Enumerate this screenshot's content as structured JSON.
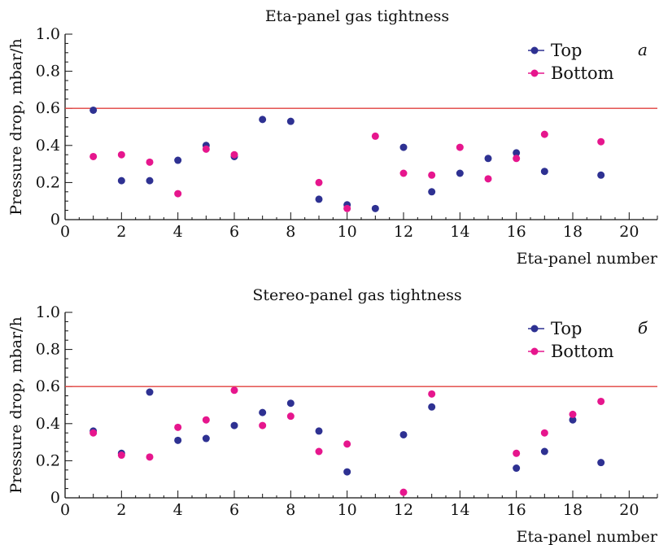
{
  "chart_data": [
    {
      "type": "scatter",
      "title": "Eta-panel gas tightness",
      "xlabel": "Eta-panel number",
      "ylabel": "Pressure drop, mbar/h",
      "panel_label": "a",
      "xlim": [
        0,
        21
      ],
      "ylim": [
        0,
        1.0
      ],
      "x_ticks": [
        0,
        2,
        4,
        6,
        8,
        10,
        12,
        14,
        16,
        18,
        20
      ],
      "y_ticks": [
        0,
        0.2,
        0.4,
        0.6,
        0.8,
        1.0
      ],
      "y_tick_labels": [
        "0",
        "0.2",
        "0.4",
        "0.6",
        "0.8",
        "1.0"
      ],
      "reference_line": {
        "y": 0.6,
        "color": "#e0413e"
      },
      "legend_position": "top-right",
      "series": [
        {
          "name": "Top",
          "color": "#2e3192",
          "points": [
            [
              1,
              0.59
            ],
            [
              2,
              0.21
            ],
            [
              3,
              0.21
            ],
            [
              4,
              0.32
            ],
            [
              5,
              0.4
            ],
            [
              6,
              0.34
            ],
            [
              7,
              0.54
            ],
            [
              8,
              0.53
            ],
            [
              9,
              0.11
            ],
            [
              10,
              0.08
            ],
            [
              11,
              0.06
            ],
            [
              12,
              0.39
            ],
            [
              13,
              0.15
            ],
            [
              14,
              0.25
            ],
            [
              15,
              0.33
            ],
            [
              16,
              0.36
            ],
            [
              17,
              0.26
            ],
            [
              19,
              0.24
            ]
          ]
        },
        {
          "name": "Bottom",
          "color": "#e6168d",
          "points": [
            [
              1,
              0.34
            ],
            [
              2,
              0.35
            ],
            [
              3,
              0.31
            ],
            [
              4,
              0.14
            ],
            [
              5,
              0.38
            ],
            [
              6,
              0.35
            ],
            [
              9,
              0.2
            ],
            [
              10,
              0.06
            ],
            [
              11,
              0.45
            ],
            [
              12,
              0.25
            ],
            [
              13,
              0.24
            ],
            [
              14,
              0.39
            ],
            [
              15,
              0.22
            ],
            [
              16,
              0.33
            ],
            [
              17,
              0.46
            ],
            [
              19,
              0.42
            ]
          ]
        }
      ]
    },
    {
      "type": "scatter",
      "title": "Stereo-panel gas tightness",
      "xlabel": "Eta-panel number",
      "ylabel": "Pressure drop, mbar/h",
      "panel_label": "б",
      "xlim": [
        0,
        21
      ],
      "ylim": [
        0,
        1.0
      ],
      "x_ticks": [
        0,
        2,
        4,
        6,
        8,
        10,
        12,
        14,
        16,
        18,
        20
      ],
      "y_ticks": [
        0,
        0.2,
        0.4,
        0.6,
        0.8,
        1.0
      ],
      "y_tick_labels": [
        "0",
        "0.2",
        "0.4",
        "0.6",
        "0.8",
        "1.0"
      ],
      "reference_line": {
        "y": 0.6,
        "color": "#e0413e"
      },
      "legend_position": "top-right",
      "series": [
        {
          "name": "Top",
          "color": "#2e3192",
          "points": [
            [
              1,
              0.36
            ],
            [
              2,
              0.24
            ],
            [
              3,
              0.57
            ],
            [
              4,
              0.31
            ],
            [
              5,
              0.32
            ],
            [
              6,
              0.39
            ],
            [
              7,
              0.46
            ],
            [
              8,
              0.51
            ],
            [
              9,
              0.36
            ],
            [
              10,
              0.14
            ],
            [
              12,
              0.34
            ],
            [
              13,
              0.49
            ],
            [
              16,
              0.16
            ],
            [
              17,
              0.25
            ],
            [
              18,
              0.42
            ],
            [
              19,
              0.19
            ]
          ]
        },
        {
          "name": "Bottom",
          "color": "#e6168d",
          "points": [
            [
              1,
              0.35
            ],
            [
              2,
              0.23
            ],
            [
              3,
              0.22
            ],
            [
              4,
              0.38
            ],
            [
              5,
              0.42
            ],
            [
              6,
              0.58
            ],
            [
              7,
              0.39
            ],
            [
              8,
              0.44
            ],
            [
              9,
              0.25
            ],
            [
              10,
              0.29
            ],
            [
              12,
              0.03
            ],
            [
              13,
              0.56
            ],
            [
              16,
              0.24
            ],
            [
              17,
              0.35
            ],
            [
              18,
              0.45
            ],
            [
              19,
              0.52
            ]
          ]
        }
      ]
    }
  ]
}
